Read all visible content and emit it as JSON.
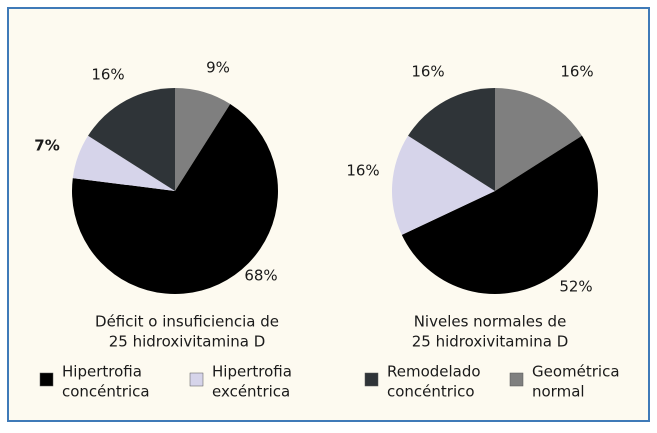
{
  "legend": [
    {
      "name": [
        "Hipertrofia",
        "concéntrica"
      ],
      "color": "#000000"
    },
    {
      "name": [
        "Hipertrofia",
        "excéntrica"
      ],
      "color": "#d6d4ea"
    },
    {
      "name": [
        "Remodelado",
        "concéntrico"
      ],
      "color": "#2f3438"
    },
    {
      "name": [
        "Geométrica",
        "normal"
      ],
      "color": "#7f7f7f"
    }
  ],
  "chart_data": [
    {
      "type": "pie",
      "title": [
        "Déficit o insuficiencia de",
        "25 hidroxivitamina D"
      ],
      "values": [
        68,
        7,
        16,
        9
      ],
      "value_labels": [
        "68%",
        "7%",
        "16%",
        "9%"
      ]
    },
    {
      "type": "pie",
      "title": [
        "Niveles normales de",
        "25 hidroxivitamina D"
      ],
      "values": [
        52,
        16,
        16,
        16
      ],
      "value_labels": [
        "52%",
        "16%",
        "16%",
        "16%"
      ]
    }
  ]
}
